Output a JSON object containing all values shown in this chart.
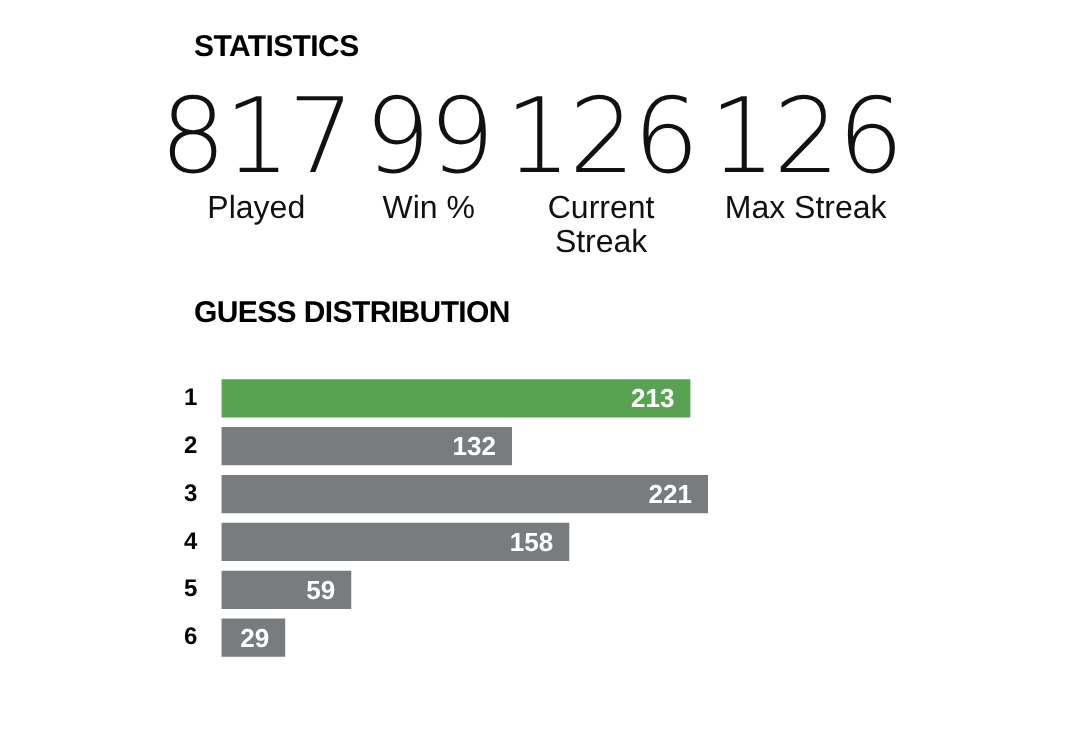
{
  "chart_data": [
    {
      "type": "other",
      "title": "STATISTICS",
      "annotations": [
        "817",
        "Played",
        "99",
        "Win %",
        "126",
        "Current Streak",
        "126",
        "Max Streak"
      ]
    },
    {
      "type": "bar",
      "orientation": "horizontal",
      "title": "GUESS DISTRIBUTION",
      "categories": [
        "1",
        "2",
        "3",
        "4",
        "5",
        "6"
      ],
      "values": [
        213,
        132,
        221,
        158,
        59,
        29
      ],
      "colors": [
        "#58a351",
        "#787c7e",
        "#787c7e",
        "#787c7e",
        "#787c7e",
        "#787c7e"
      ],
      "data_labels": true
    }
  ]
}
